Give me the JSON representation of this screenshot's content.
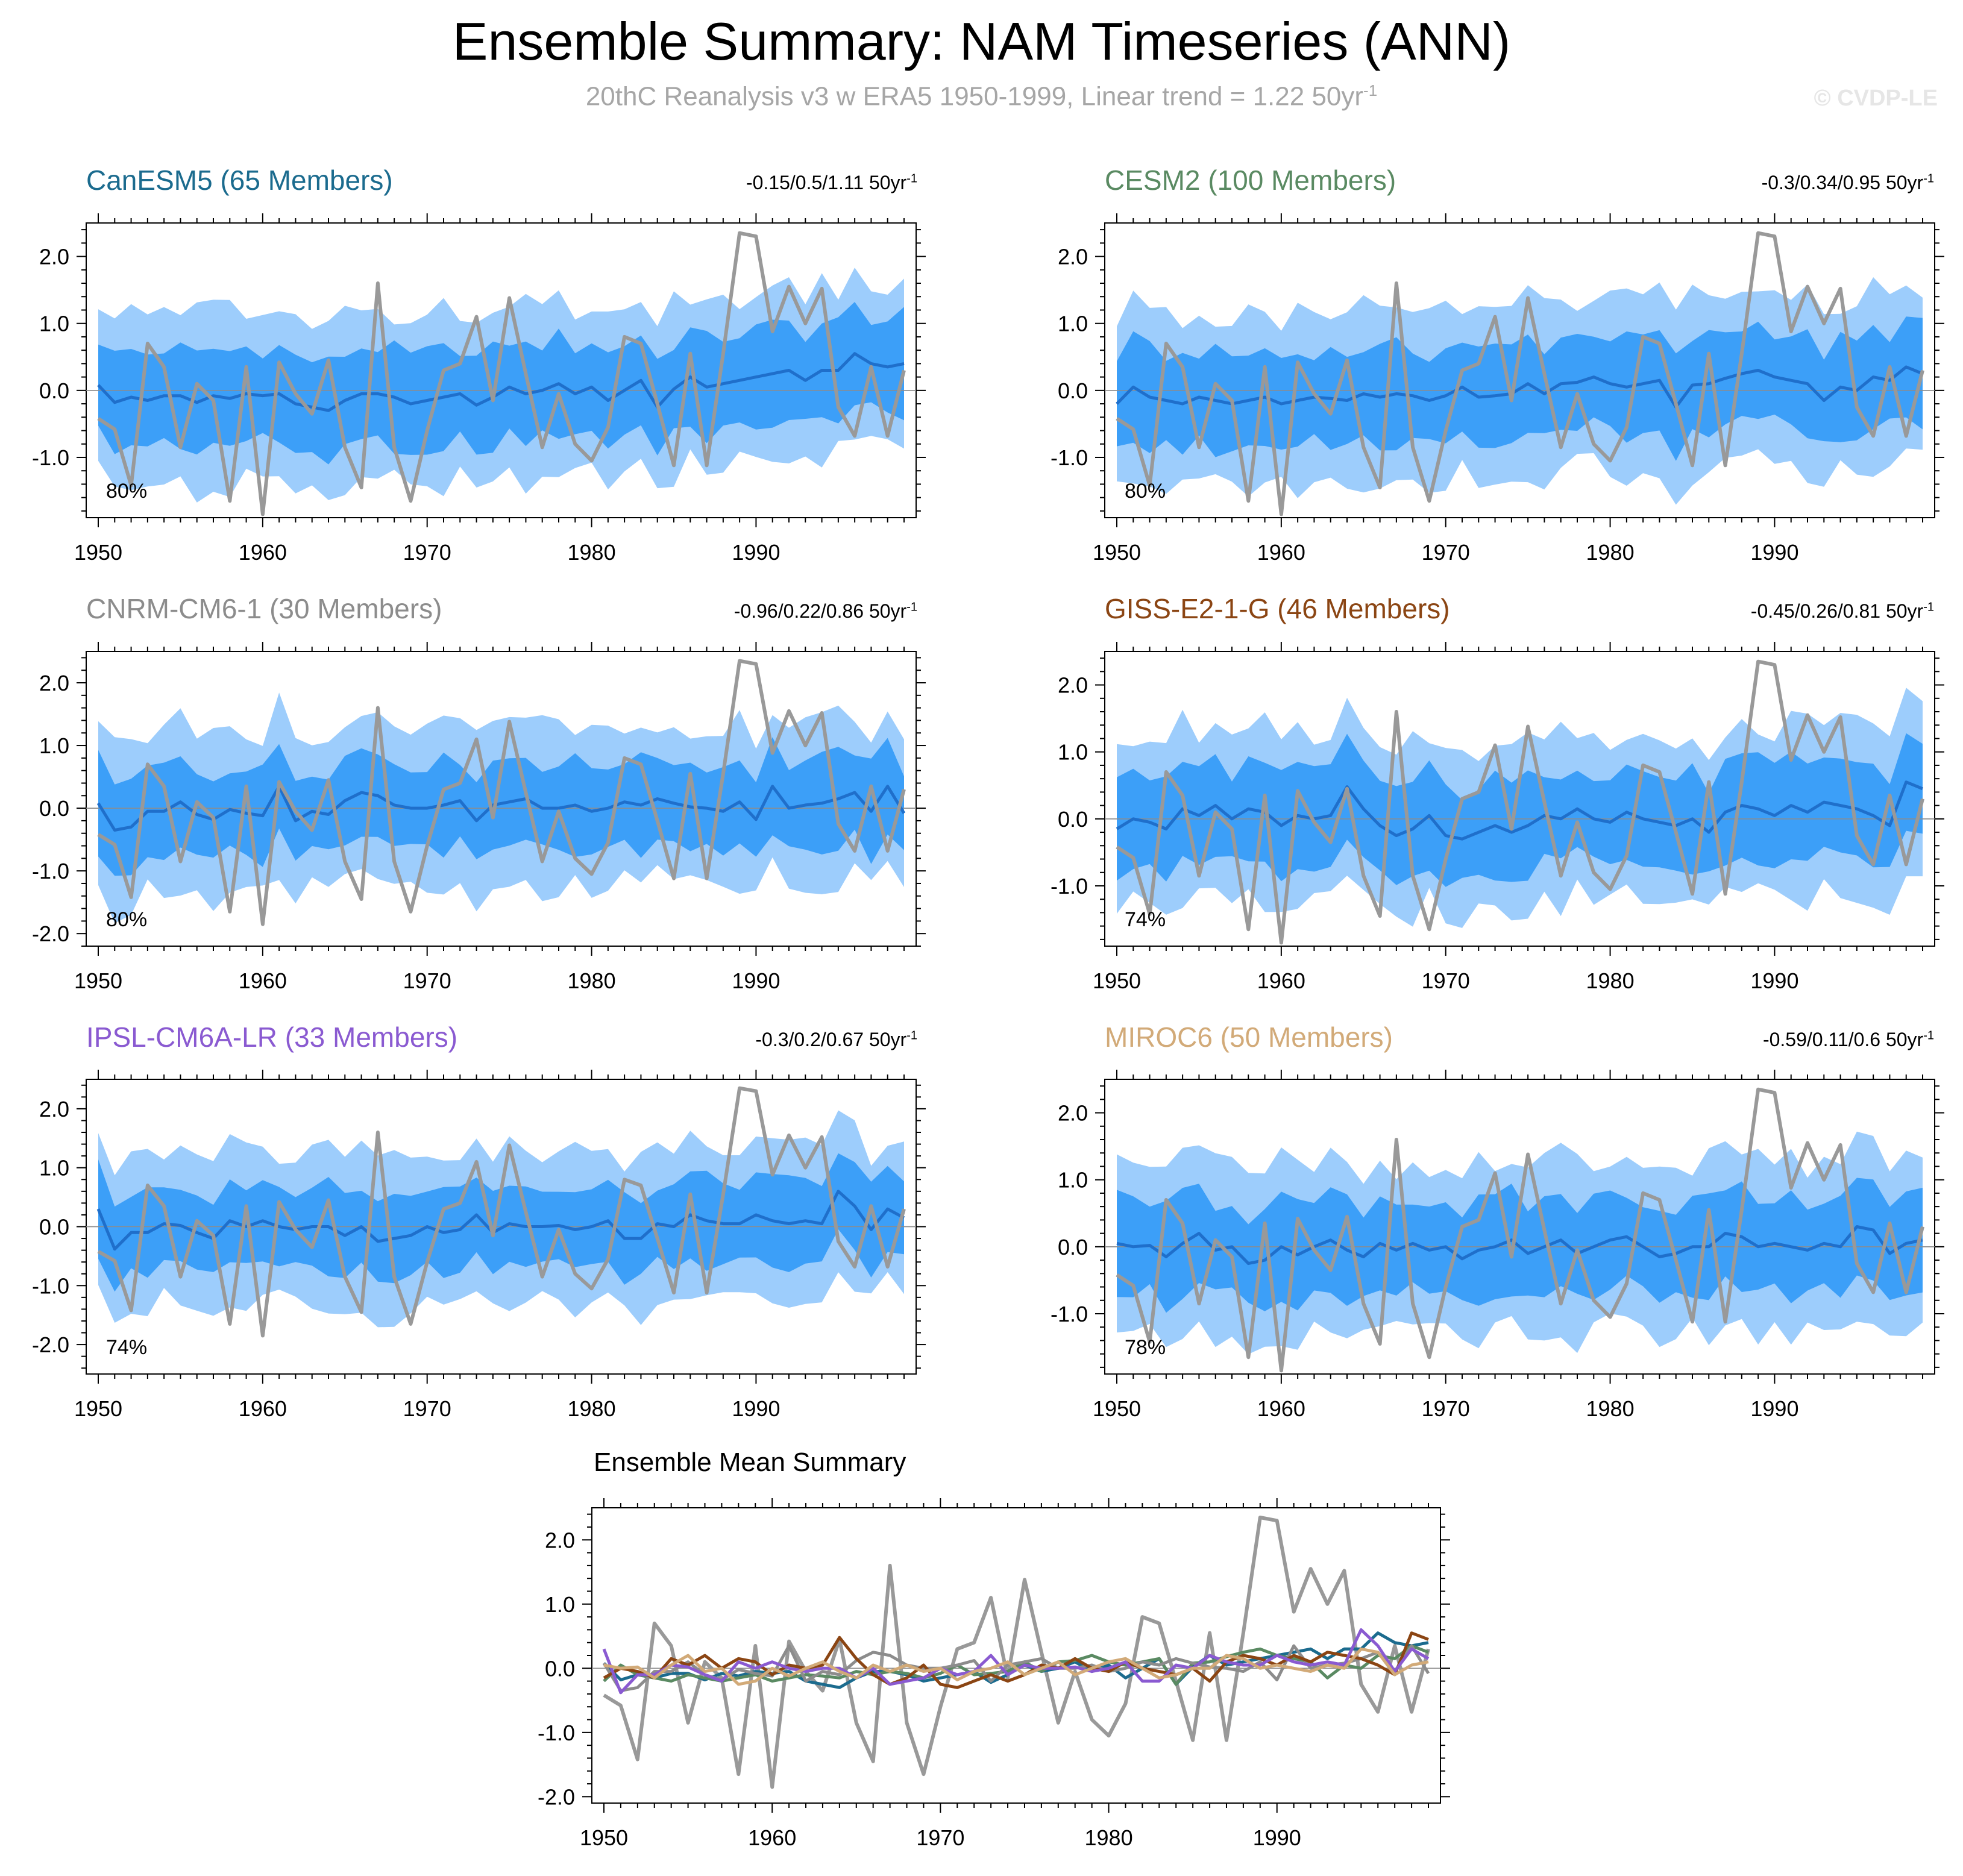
{
  "title": "Ensemble Summary: NAM Timeseries (ANN)",
  "subtitle": {
    "prefix": "20thC Reanalysis v3 w ERA5 1950-1999, Linear trend = 1.22 50yr",
    "sup": "-1"
  },
  "watermark": "© CVDP-LE",
  "colors": {
    "outer_band": "#9dcdfc",
    "inner_band": "#3c9ff8",
    "ens_mean": "#1f6fcb",
    "obs": "#999999"
  },
  "chart_data": {
    "type": "line",
    "years": [
      1950,
      1951,
      1952,
      1953,
      1954,
      1955,
      1956,
      1957,
      1958,
      1959,
      1960,
      1961,
      1962,
      1963,
      1964,
      1965,
      1966,
      1967,
      1968,
      1969,
      1970,
      1971,
      1972,
      1973,
      1974,
      1975,
      1976,
      1977,
      1978,
      1979,
      1980,
      1981,
      1982,
      1983,
      1984,
      1985,
      1986,
      1987,
      1988,
      1989,
      1990,
      1991,
      1992,
      1993,
      1994,
      1995,
      1996,
      1997,
      1998,
      1999
    ],
    "x_ticks": [
      1950,
      1960,
      1970,
      1980,
      1990
    ],
    "observed": {
      "name": "20thC Reanalysis v3 w ERA5",
      "values": [
        -0.42,
        -0.58,
        -1.42,
        0.7,
        0.35,
        -0.85,
        0.1,
        -0.15,
        -1.65,
        0.35,
        -1.85,
        0.42,
        -0.05,
        -0.35,
        0.45,
        -0.85,
        -1.45,
        1.6,
        -0.85,
        -1.65,
        -0.6,
        0.3,
        0.4,
        1.1,
        -0.15,
        1.38,
        0.25,
        -0.85,
        -0.05,
        -0.8,
        -1.05,
        -0.55,
        0.8,
        0.7,
        -0.2,
        -1.12,
        0.55,
        -1.12,
        0.55,
        2.35,
        2.3,
        0.88,
        1.55,
        1.0,
        1.52,
        -0.25,
        -0.68,
        0.35,
        -0.68,
        0.3
      ]
    },
    "panels": [
      {
        "name": "CanESM5 (65 Members)",
        "color": "#1b6b8e",
        "stats": "-0.15/0.5/1.11 50yr",
        "stats_sup": "-1",
        "pct": "80%",
        "ylim": [
          -1.9,
          2.5
        ],
        "y_ticks": [
          -1.0,
          0.0,
          1.0,
          2.0
        ],
        "y_tick_labels": [
          "-1.0",
          "0.0",
          "1.0",
          "2.0"
        ],
        "mean": [
          0.08,
          -0.18,
          -0.1,
          -0.15,
          -0.08,
          -0.08,
          -0.18,
          -0.08,
          -0.12,
          -0.05,
          -0.08,
          -0.05,
          -0.2,
          -0.25,
          -0.3,
          -0.15,
          -0.05,
          -0.05,
          -0.1,
          -0.2,
          -0.15,
          -0.1,
          -0.05,
          -0.22,
          -0.1,
          0.05,
          -0.05,
          0.0,
          0.1,
          -0.05,
          0.05,
          -0.15,
          0.0,
          0.15,
          -0.25,
          0.02,
          0.2,
          0.05,
          0.1,
          0.15,
          0.2,
          0.25,
          0.3,
          0.15,
          0.3,
          0.3,
          0.55,
          0.4,
          0.35,
          0.4
        ]
      },
      {
        "name": "CESM2 (100 Members)",
        "color": "#5a8a62",
        "stats": "-0.3/0.34/0.95 50yr",
        "stats_sup": "-1",
        "pct": "80%",
        "ylim": [
          -1.9,
          2.5
        ],
        "y_ticks": [
          -1.0,
          0.0,
          1.0,
          2.0
        ],
        "y_tick_labels": [
          "-1.0",
          "0.0",
          "1.0",
          "2.0"
        ],
        "mean": [
          -0.2,
          0.05,
          -0.1,
          -0.15,
          -0.2,
          -0.1,
          -0.15,
          -0.2,
          -0.15,
          -0.1,
          -0.2,
          -0.15,
          -0.1,
          -0.12,
          -0.15,
          -0.05,
          -0.1,
          -0.05,
          -0.08,
          -0.15,
          -0.08,
          0.05,
          -0.1,
          -0.08,
          -0.05,
          0.1,
          -0.05,
          0.1,
          0.12,
          0.2,
          0.1,
          0.05,
          0.1,
          0.15,
          -0.25,
          0.08,
          0.1,
          0.18,
          0.25,
          0.3,
          0.2,
          0.15,
          0.1,
          -0.15,
          0.05,
          0.0,
          0.2,
          0.15,
          0.35,
          0.25
        ]
      },
      {
        "name": "CNRM-CM6-1 (30 Members)",
        "color": "#8c8c8c",
        "stats": "-0.96/0.22/0.86 50yr",
        "stats_sup": "-1",
        "pct": "80%",
        "ylim": [
          -2.2,
          2.5
        ],
        "y_ticks": [
          -2.0,
          -1.0,
          0.0,
          1.0,
          2.0
        ],
        "y_tick_labels": [
          "-2.0",
          "-1.0",
          "0.0",
          "1.0",
          "2.0"
        ],
        "mean": [
          0.08,
          -0.35,
          -0.3,
          -0.05,
          -0.05,
          0.1,
          -0.1,
          -0.18,
          -0.02,
          -0.08,
          -0.12,
          0.35,
          -0.2,
          -0.05,
          -0.1,
          0.12,
          0.25,
          0.2,
          0.05,
          0.0,
          0.0,
          0.05,
          0.12,
          -0.2,
          0.05,
          0.1,
          0.15,
          0.0,
          0.0,
          0.05,
          -0.05,
          0.0,
          0.1,
          0.05,
          0.15,
          0.08,
          0.02,
          0.0,
          -0.05,
          0.1,
          -0.18,
          0.35,
          0.0,
          0.05,
          0.08,
          0.15,
          0.25,
          -0.05,
          0.35,
          -0.08
        ]
      },
      {
        "name": "GISS-E2-1-G (46 Members)",
        "color": "#8b4513",
        "stats": "-0.45/0.26/0.81 50yr",
        "stats_sup": "-1",
        "pct": "74%",
        "ylim": [
          -1.9,
          2.5
        ],
        "y_ticks": [
          -1.0,
          0.0,
          1.0,
          2.0
        ],
        "y_tick_labels": [
          "-1.0",
          "0.0",
          "1.0",
          "2.0"
        ],
        "mean": [
          -0.15,
          0.0,
          -0.05,
          -0.15,
          0.15,
          0.05,
          0.2,
          0.0,
          0.15,
          0.1,
          -0.1,
          0.05,
          0.0,
          0.05,
          0.48,
          0.15,
          -0.1,
          -0.25,
          -0.15,
          0.05,
          -0.25,
          -0.3,
          -0.2,
          -0.1,
          -0.2,
          -0.1,
          0.05,
          0.0,
          0.15,
          0.0,
          -0.05,
          0.1,
          0.0,
          -0.05,
          -0.1,
          0.0,
          -0.2,
          0.1,
          0.2,
          0.15,
          0.05,
          0.2,
          0.1,
          0.25,
          0.2,
          0.15,
          0.05,
          -0.1,
          0.55,
          0.45
        ]
      },
      {
        "name": "IPSL-CM6A-LR (33 Members)",
        "color": "#8a5ad1",
        "stats": "-0.3/0.2/0.67 50yr",
        "stats_sup": "-1",
        "pct": "74%",
        "ylim": [
          -2.5,
          2.5
        ],
        "y_ticks": [
          -2.0,
          -1.0,
          0.0,
          1.0,
          2.0
        ],
        "y_tick_labels": [
          "-2.0",
          "-1.0",
          "0.0",
          "1.0",
          "2.0"
        ],
        "mean": [
          0.3,
          -0.38,
          -0.1,
          -0.1,
          0.05,
          0.02,
          -0.1,
          -0.2,
          0.1,
          0.0,
          0.1,
          0.0,
          -0.05,
          0.0,
          0.0,
          -0.15,
          0.0,
          -0.25,
          -0.2,
          -0.15,
          0.0,
          -0.1,
          -0.05,
          0.2,
          -0.1,
          0.05,
          0.0,
          0.0,
          0.02,
          -0.05,
          0.0,
          0.1,
          -0.2,
          -0.2,
          0.05,
          0.0,
          0.2,
          0.1,
          0.05,
          0.05,
          0.2,
          0.1,
          0.05,
          0.1,
          0.05,
          0.6,
          0.35,
          -0.05,
          0.3,
          0.15
        ]
      },
      {
        "name": "MIROC6 (50 Members)",
        "color": "#d2aa78",
        "stats": "-0.59/0.11/0.6 50yr",
        "stats_sup": "-1",
        "pct": "78%",
        "ylim": [
          -1.9,
          2.5
        ],
        "y_ticks": [
          -1.0,
          0.0,
          1.0,
          2.0
        ],
        "y_tick_labels": [
          "-1.0",
          "0.0",
          "1.0",
          "2.0"
        ],
        "mean": [
          0.05,
          0.0,
          0.02,
          -0.15,
          0.05,
          0.2,
          -0.05,
          0.0,
          -0.25,
          -0.2,
          0.0,
          -0.12,
          0.0,
          0.1,
          -0.05,
          -0.15,
          0.05,
          -0.05,
          0.05,
          -0.05,
          0.0,
          -0.18,
          -0.05,
          0.0,
          0.1,
          -0.1,
          0.0,
          0.1,
          -0.1,
          0.0,
          0.1,
          0.15,
          0.0,
          -0.15,
          -0.1,
          0.0,
          0.0,
          0.2,
          0.15,
          0.0,
          0.05,
          0.0,
          -0.05,
          0.05,
          0.0,
          0.3,
          0.25,
          -0.1,
          0.05,
          0.1
        ]
      }
    ],
    "summary": {
      "title": "Ensemble Mean Summary",
      "ylim": [
        -2.1,
        2.5
      ],
      "y_ticks": [
        -2.0,
        -1.0,
        0.0,
        1.0,
        2.0
      ],
      "y_tick_labels": [
        "-2.0",
        "-1.0",
        "0.0",
        "1.0",
        "2.0"
      ]
    }
  }
}
